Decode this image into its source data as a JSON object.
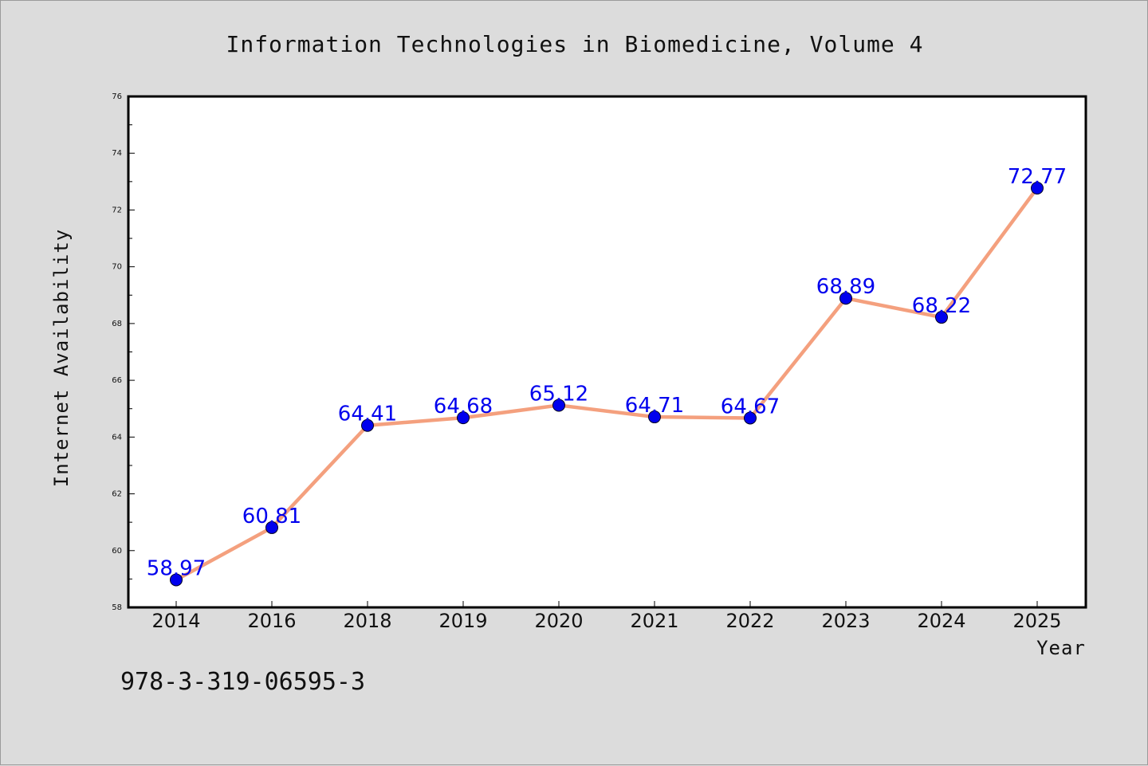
{
  "chart_data": {
    "type": "line",
    "title": "Information Technologies in Biomedicine, Volume 4",
    "xlabel": "Year",
    "ylabel": "Internet Availability",
    "categories": [
      "2014",
      "2016",
      "2018",
      "2019",
      "2020",
      "2021",
      "2022",
      "2023",
      "2024",
      "2025"
    ],
    "series": [
      {
        "values": [
          58.97,
          60.81,
          64.41,
          64.68,
          65.12,
          64.71,
          64.67,
          68.89,
          68.22,
          72.77
        ],
        "data_labels": [
          "58.97",
          "60.81",
          "64.41",
          "64.68",
          "65.12",
          "64.71",
          "64.67",
          "68.89",
          "68.22",
          "72.77"
        ]
      }
    ],
    "ylim": [
      58,
      76
    ],
    "yticks": [
      58,
      60,
      62,
      64,
      66,
      68,
      70,
      72,
      74,
      76
    ],
    "ytick_labels": [
      "58",
      "60",
      "62",
      "64",
      "66",
      "68",
      "70",
      "72",
      "74",
      "76"
    ],
    "grid": false,
    "line_color": "#f4a07e",
    "marker_color": "#0000ee",
    "label_color": "#0000ee"
  },
  "footer": {
    "isbn": "978-3-319-06595-3"
  }
}
